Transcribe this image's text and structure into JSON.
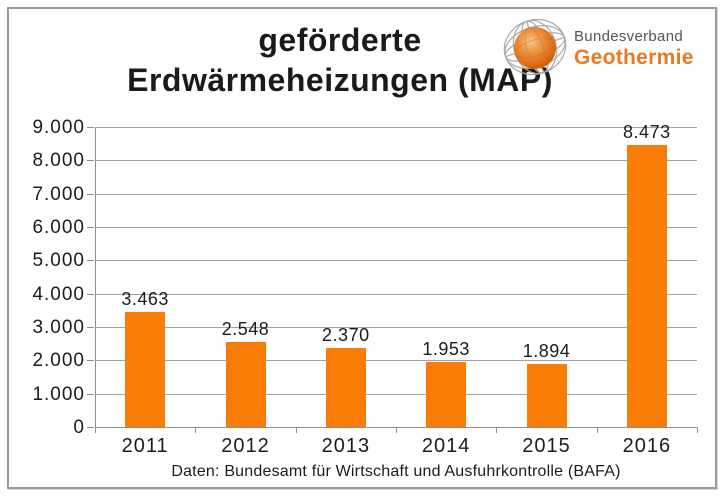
{
  "header": {
    "title_line1": "geförderte",
    "title_line2": "Erdwärmeheizungen (MAP)"
  },
  "logo": {
    "org_line1": "Bundesverband",
    "org_line2": "Geothermie",
    "gray_color": "#54565a",
    "orange_color": "#e87a22"
  },
  "chart_data": {
    "type": "bar",
    "title": "geförderte Erdwärmeheizungen (MAP)",
    "categories": [
      "2011",
      "2012",
      "2013",
      "2014",
      "2015",
      "2016"
    ],
    "values": [
      3463,
      2548,
      2370,
      1953,
      1894,
      8473
    ],
    "value_labels": [
      "3.463",
      "2.548",
      "2.370",
      "1.953",
      "1.894",
      "8.473"
    ],
    "y_tick_labels": [
      "0",
      "1.000",
      "2.000",
      "3.000",
      "4.000",
      "5.000",
      "6.000",
      "7.000",
      "8.000",
      "9.000"
    ],
    "ylim": [
      0,
      9000
    ],
    "y_step": 1000,
    "xlabel": "",
    "ylabel": "",
    "grid": true,
    "legend": "none",
    "bar_color": "#f97d06",
    "gridline_color": "#a3a3a3",
    "source_note": "Daten: Bundesamt für Wirtschaft und Ausfuhrkontrolle (BAFA)"
  }
}
